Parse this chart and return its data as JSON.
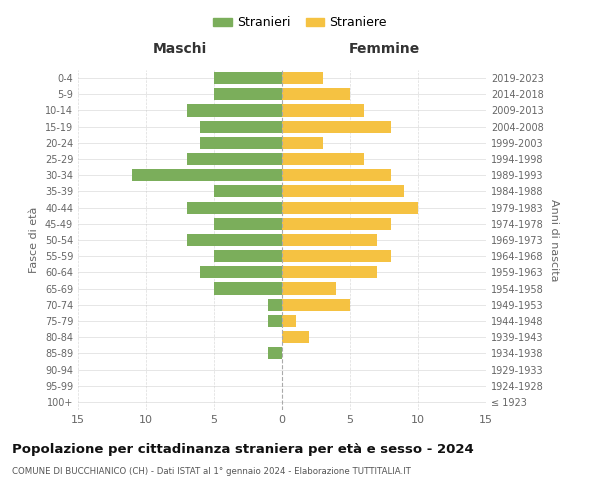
{
  "age_groups": [
    "100+",
    "95-99",
    "90-94",
    "85-89",
    "80-84",
    "75-79",
    "70-74",
    "65-69",
    "60-64",
    "55-59",
    "50-54",
    "45-49",
    "40-44",
    "35-39",
    "30-34",
    "25-29",
    "20-24",
    "15-19",
    "10-14",
    "5-9",
    "0-4"
  ],
  "birth_years": [
    "≤ 1923",
    "1924-1928",
    "1929-1933",
    "1934-1938",
    "1939-1943",
    "1944-1948",
    "1949-1953",
    "1954-1958",
    "1959-1963",
    "1964-1968",
    "1969-1973",
    "1974-1978",
    "1979-1983",
    "1984-1988",
    "1989-1993",
    "1994-1998",
    "1999-2003",
    "2004-2008",
    "2009-2013",
    "2014-2018",
    "2019-2023"
  ],
  "males": [
    0,
    0,
    0,
    1,
    0,
    1,
    1,
    5,
    6,
    5,
    7,
    5,
    7,
    5,
    11,
    7,
    6,
    6,
    7,
    5,
    5
  ],
  "females": [
    0,
    0,
    0,
    0,
    2,
    1,
    5,
    4,
    7,
    8,
    7,
    8,
    10,
    9,
    8,
    6,
    3,
    8,
    6,
    5,
    3
  ],
  "male_color": "#7BAE5B",
  "female_color": "#F5C242",
  "background_color": "#ffffff",
  "grid_color": "#cccccc",
  "title": "Popolazione per cittadinanza straniera per età e sesso - 2024",
  "subtitle": "COMUNE DI BUCCHIANICO (CH) - Dati ISTAT al 1° gennaio 2024 - Elaborazione TUTTITALIA.IT",
  "xlabel_left": "Maschi",
  "xlabel_right": "Femmine",
  "ylabel_left": "Fasce di età",
  "ylabel_right": "Anni di nascita",
  "legend_stranieri": "Stranieri",
  "legend_straniere": "Straniere",
  "xlim": 15,
  "figsize": [
    6.0,
    5.0
  ],
  "dpi": 100
}
